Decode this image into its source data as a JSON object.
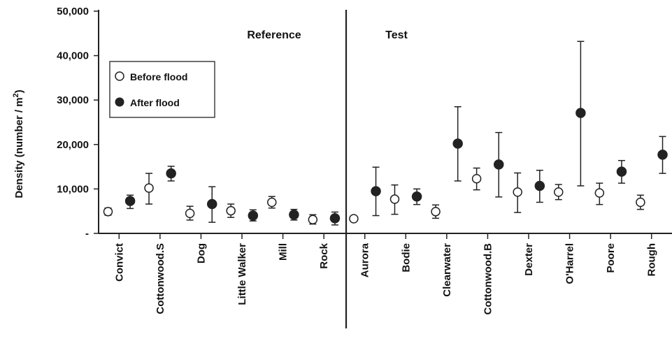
{
  "chart_data": {
    "type": "scatter",
    "ylabel": "Density (number / m",
    "ylabel_superscript": "2",
    "ylabel_close": ")",
    "ylim": [
      0,
      50000
    ],
    "y_ticks": [
      {
        "value": 50000,
        "label": "50,000"
      },
      {
        "value": 40000,
        "label": "40,000"
      },
      {
        "value": 30000,
        "label": "30,000"
      },
      {
        "value": 20000,
        "label": "20,000"
      },
      {
        "value": 10000,
        "label": "10,000"
      },
      {
        "value": 0,
        "label": "-"
      }
    ],
    "groups": [
      {
        "label": "Reference",
        "categories": [
          "Convict",
          "Cottonwood.S",
          "Dog",
          "Little Walker",
          "Mill",
          "Rock"
        ]
      },
      {
        "label": "Test",
        "categories": [
          "Aurora",
          "Bodie",
          "Clearwater",
          "Cottonwood.B",
          "Dexter",
          "O'Harrel",
          "Poore",
          "Rough"
        ]
      }
    ],
    "categories": [
      "Convict",
      "Cottonwood.S",
      "Dog",
      "Little Walker",
      "Mill",
      "Rock",
      "Aurora",
      "Bodie",
      "Clearwater",
      "Cottonwood.B",
      "Dexter",
      "O'Harrel",
      "Poore",
      "Rough"
    ],
    "legend": {
      "position": "upper-left"
    },
    "series": [
      {
        "name": "Before flood",
        "marker": "open-circle",
        "values": [
          4900,
          10200,
          4500,
          5100,
          7000,
          3100,
          3300,
          7700,
          4900,
          12300,
          9300,
          9300,
          9100,
          7000
        ],
        "error_low": [
          4100,
          6600,
          3000,
          3600,
          5700,
          2100,
          null,
          4300,
          3400,
          9800,
          4700,
          7600,
          6500,
          5400
        ],
        "error_high": [
          5700,
          13500,
          6100,
          6600,
          8300,
          4200,
          null,
          10900,
          6400,
          14700,
          13600,
          11000,
          11300,
          8600
        ]
      },
      {
        "name": "After flood",
        "marker": "filled-circle",
        "values": [
          7300,
          13500,
          6600,
          4000,
          4200,
          3400,
          9500,
          8300,
          20200,
          15500,
          10700,
          27100,
          13900,
          17700
        ],
        "error_low": [
          5600,
          11800,
          2500,
          2800,
          3000,
          1900,
          4000,
          6500,
          11800,
          8200,
          7000,
          10700,
          11300,
          13500
        ],
        "error_high": [
          8600,
          15100,
          10500,
          5300,
          5400,
          4800,
          14900,
          10000,
          28500,
          22700,
          14200,
          43200,
          16400,
          21800
        ]
      }
    ]
  }
}
